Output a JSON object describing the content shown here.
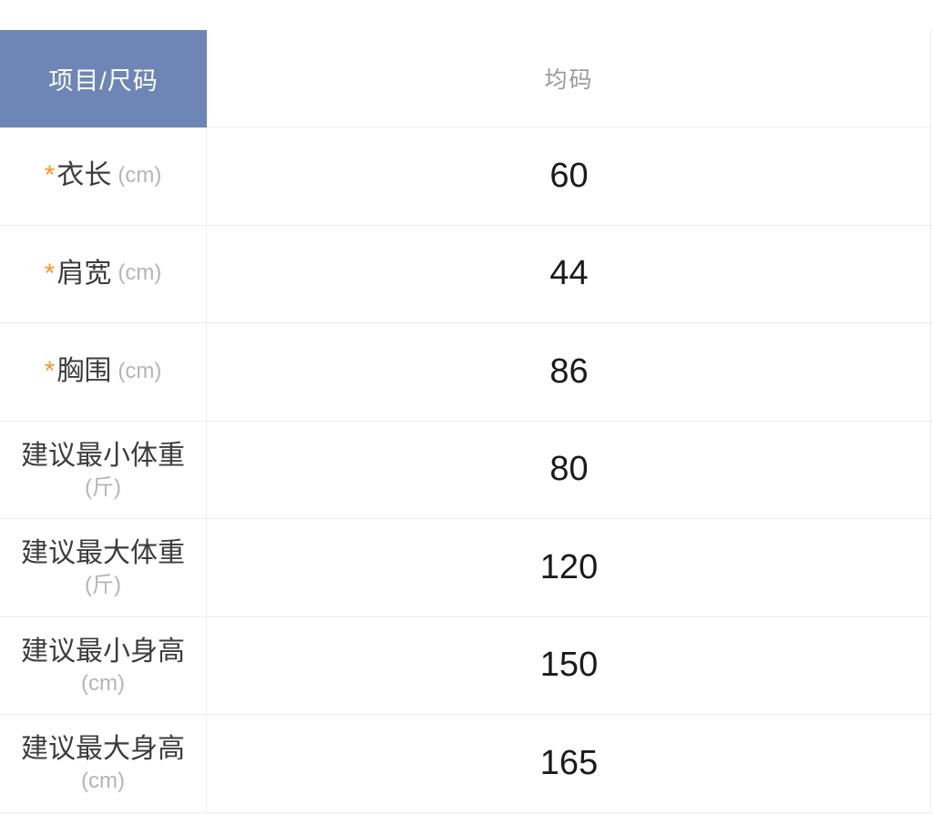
{
  "table": {
    "corner_header": "项目/尺码",
    "size_header": "均码",
    "required_marker": "*",
    "rows": [
      {
        "label": "衣长",
        "unit": "(cm)",
        "required": true,
        "value": "60"
      },
      {
        "label": "肩宽",
        "unit": "(cm)",
        "required": true,
        "value": "44"
      },
      {
        "label": "胸围",
        "unit": "(cm)",
        "required": true,
        "value": "86"
      },
      {
        "label": "建议最小体重",
        "unit": "(斤)",
        "required": false,
        "value": "80"
      },
      {
        "label": "建议最大体重",
        "unit": "(斤)",
        "required": false,
        "value": "120"
      },
      {
        "label": "建议最小身高",
        "unit": "(cm)",
        "required": false,
        "value": "150"
      },
      {
        "label": "建议最大身高",
        "unit": "(cm)",
        "required": false,
        "value": "165"
      }
    ],
    "colors": {
      "header_bg": "#6d86b5",
      "header_text": "#ffffff",
      "size_header_text": "#9a9a9a",
      "label_text": "#3c3c3c",
      "unit_text": "#b5b5b5",
      "required_marker": "#f59a23",
      "value_text": "#1b1b1b",
      "divider": "#ededed"
    }
  }
}
